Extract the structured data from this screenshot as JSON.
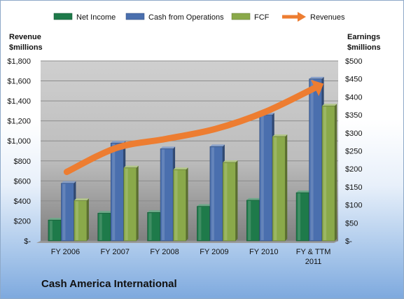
{
  "chart_data": {
    "type": "bar",
    "title": "Cash America International",
    "categories": [
      "FY 2006",
      "FY 2007",
      "FY 2008",
      "FY 2009",
      "FY 2010",
      "FY & TTM 2011"
    ],
    "left_axis": {
      "label_line1": "Revenue",
      "label_line2": "$millions",
      "ylim": [
        0,
        1800
      ],
      "ticks": [
        0,
        200,
        400,
        600,
        800,
        1000,
        1200,
        1400,
        1600,
        1800
      ],
      "tick_labels": [
        "$-",
        "$200",
        "$400",
        "$600",
        "$800",
        "$1,000",
        "$1,200",
        "$1,400",
        "$1,600",
        "$1,800"
      ]
    },
    "right_axis": {
      "label_line1": "Earnings",
      "label_line2": "$millions",
      "ylim": [
        0,
        500
      ],
      "ticks": [
        0,
        50,
        100,
        150,
        200,
        250,
        300,
        350,
        400,
        450,
        500
      ],
      "tick_labels": [
        "$-",
        "$50",
        "$100",
        "$150",
        "$200",
        "$250",
        "$300",
        "$350",
        "$400",
        "$450",
        "$500"
      ]
    },
    "series": [
      {
        "name": "Net Income",
        "axis": "right",
        "color": "#1e7a4a",
        "values": [
          58,
          77,
          79,
          96,
          113,
          134
        ]
      },
      {
        "name": "Cash from Operations",
        "axis": "right",
        "color": "#4a6fae",
        "values": [
          160,
          272,
          256,
          262,
          350,
          450
        ]
      },
      {
        "name": "FCF",
        "axis": "right",
        "color": "#8aa94a",
        "values": [
          112,
          203,
          198,
          218,
          290,
          375
        ]
      },
      {
        "name": "Revenues",
        "axis": "left",
        "color": "#ed7d31",
        "type": "arrow-line",
        "values": [
          690,
          930,
          1020,
          1120,
          1290,
          1530
        ]
      }
    ],
    "grid": true,
    "legend": "top"
  }
}
